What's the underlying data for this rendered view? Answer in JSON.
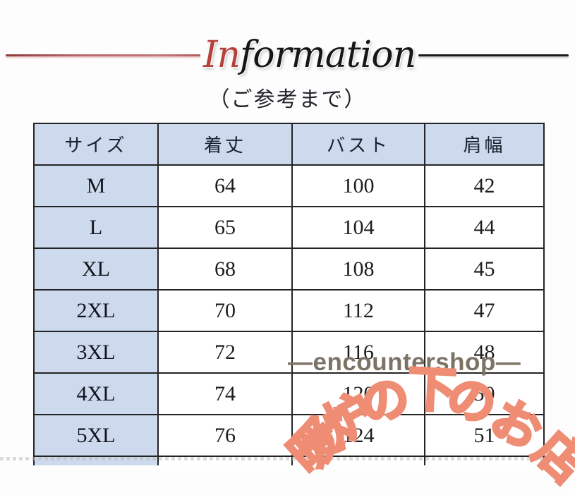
{
  "header": {
    "title_prefix": "In",
    "title_rest": "formation",
    "subtitle": "（ご参考まで）"
  },
  "size_table": {
    "columns": [
      "サイズ",
      "着丈",
      "バスト",
      "肩幅"
    ],
    "rows": [
      {
        "size": "M",
        "length": "64",
        "bust": "100",
        "shoulder": "42"
      },
      {
        "size": "L",
        "length": "65",
        "bust": "104",
        "shoulder": "44"
      },
      {
        "size": "XL",
        "length": "68",
        "bust": "108",
        "shoulder": "45"
      },
      {
        "size": "2XL",
        "length": "70",
        "bust": "112",
        "shoulder": "47"
      },
      {
        "size": "3XL",
        "length": "72",
        "bust": "116",
        "shoulder": "48"
      },
      {
        "size": "4XL",
        "length": "74",
        "bust": "120",
        "shoulder": "50"
      },
      {
        "size": "5XL",
        "length": "76",
        "bust": "124",
        "shoulder": "51"
      }
    ]
  },
  "watermarks": {
    "shop_name": "—encountershop—",
    "stamp_text": "暖炉の下のお店",
    "stamp_chars": [
      "暖",
      "炉",
      "の",
      "下",
      "の",
      "お",
      "店"
    ]
  },
  "colors": {
    "title_accent_red": "#b5413c",
    "table_cell_blue": "#cdd9ec",
    "table_border": "#242424",
    "stamp_salmon": "#ef8c74",
    "shop_watermark_gray": "#7b7365"
  }
}
